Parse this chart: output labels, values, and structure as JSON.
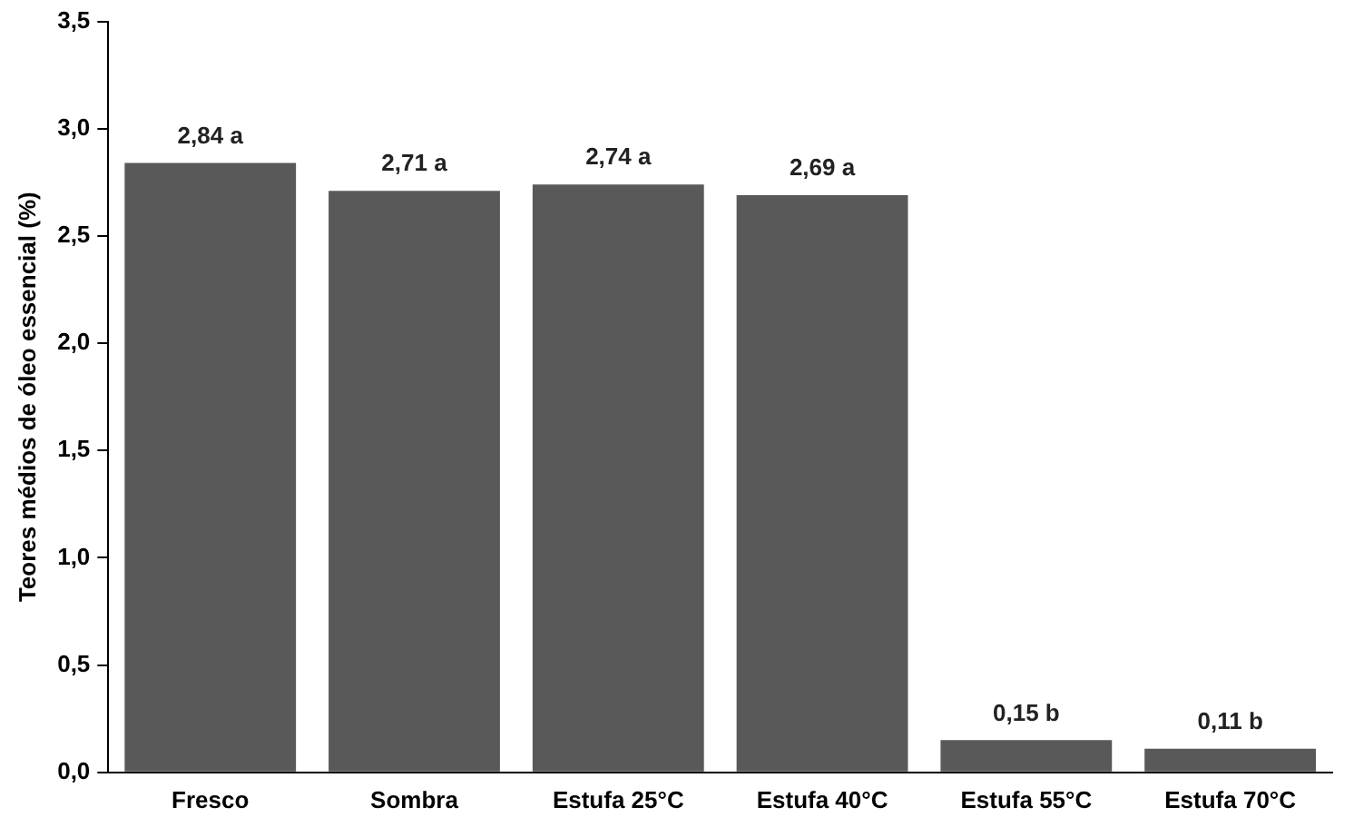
{
  "chart_data": {
    "type": "bar",
    "ylabel": "Teores médios de óleo essencial (%)",
    "categories": [
      "Fresco",
      "Sombra",
      "Estufa 25°C",
      "Estufa 40°C",
      "Estufa 55°C",
      "Estufa 70°C"
    ],
    "values": [
      2.84,
      2.71,
      2.74,
      2.69,
      0.15,
      0.11
    ],
    "value_labels": [
      "2,84 a",
      "2,71 a",
      "2,74 a",
      "2,69 a",
      "0,15 b",
      "0,11 b"
    ],
    "color": "#595959",
    "ylim": [
      0,
      3.5
    ],
    "yticks": [
      {
        "value": 0,
        "label": "0,0"
      },
      {
        "value": 0.5,
        "label": "0,5"
      },
      {
        "value": 1,
        "label": "1,0"
      },
      {
        "value": 1.5,
        "label": "1,5"
      },
      {
        "value": 2,
        "label": "2,0"
      },
      {
        "value": 2.5,
        "label": "2,5"
      },
      {
        "value": 3,
        "label": "3,0"
      },
      {
        "value": 3.5,
        "label": "3,5"
      }
    ],
    "grid": false,
    "legend": false
  }
}
